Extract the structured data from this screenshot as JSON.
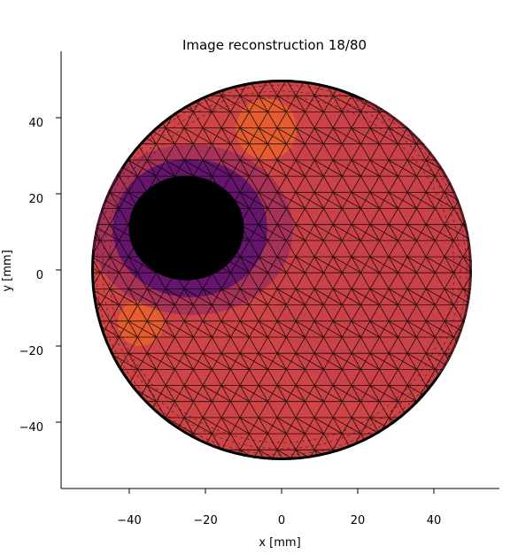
{
  "chart_data": {
    "type": "heatmap",
    "title": "Image reconstruction 18/80",
    "xlabel": "x [mm]",
    "ylabel": "y [mm]",
    "xlim": [
      -58,
      58
    ],
    "ylim": [
      -58,
      58
    ],
    "xticks": [
      {
        "value": -40,
        "label": "−40"
      },
      {
        "value": -20,
        "label": "−20"
      },
      {
        "value": 0,
        "label": "0"
      },
      {
        "value": 20,
        "label": "20"
      },
      {
        "value": 40,
        "label": "40"
      }
    ],
    "yticks": [
      {
        "value": 40,
        "label": "40"
      },
      {
        "value": 20,
        "label": "20"
      },
      {
        "value": 0,
        "label": "0"
      },
      {
        "value": -20,
        "label": "−20"
      },
      {
        "value": -40,
        "label": "−40"
      }
    ],
    "grid": false,
    "colormap": "inferno-like (black → purple → red → orange)",
    "domain": {
      "shape": "circle",
      "center": [
        0,
        0
      ],
      "radius_mm": 50
    },
    "features": [
      {
        "kind": "low-conductivity inclusion (black)",
        "center_mm": [
          -25,
          11
        ],
        "radius_mm": 14
      },
      {
        "kind": "bright region (orange)",
        "center_mm": [
          -37,
          -14
        ],
        "radius_mm": 6
      },
      {
        "kind": "bright region (orange)",
        "center_mm": [
          -4,
          37
        ],
        "radius_mm": 8
      }
    ],
    "colors": {
      "background": "#cf4446",
      "inclusion": "#000000",
      "halo": "#5d126e",
      "highlight": "#e8602c",
      "mesh": "#000000"
    }
  }
}
